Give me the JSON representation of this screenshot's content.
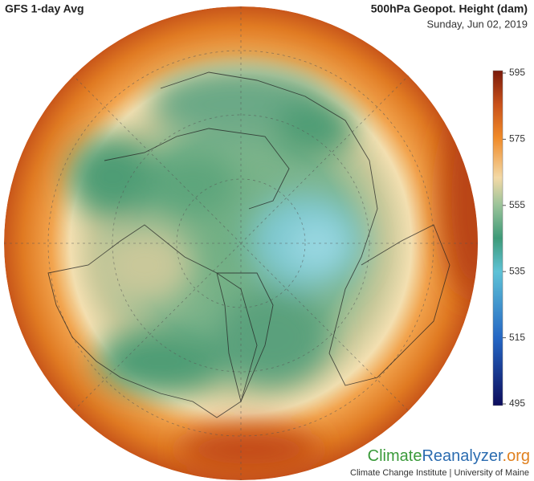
{
  "header": {
    "title": "GFS 1-day Avg",
    "variable": "500hPa Geopot. Height (dam)",
    "date": "Sunday, Jun 02, 2019"
  },
  "colorbar": {
    "lim": [
      495,
      595
    ],
    "ticks": [
      495,
      515,
      535,
      555,
      575,
      595
    ]
  },
  "footer": {
    "brand": [
      "Climate",
      "Reanalyzer",
      ".org"
    ],
    "credit": "Climate Change Institute | University of Maine"
  }
}
